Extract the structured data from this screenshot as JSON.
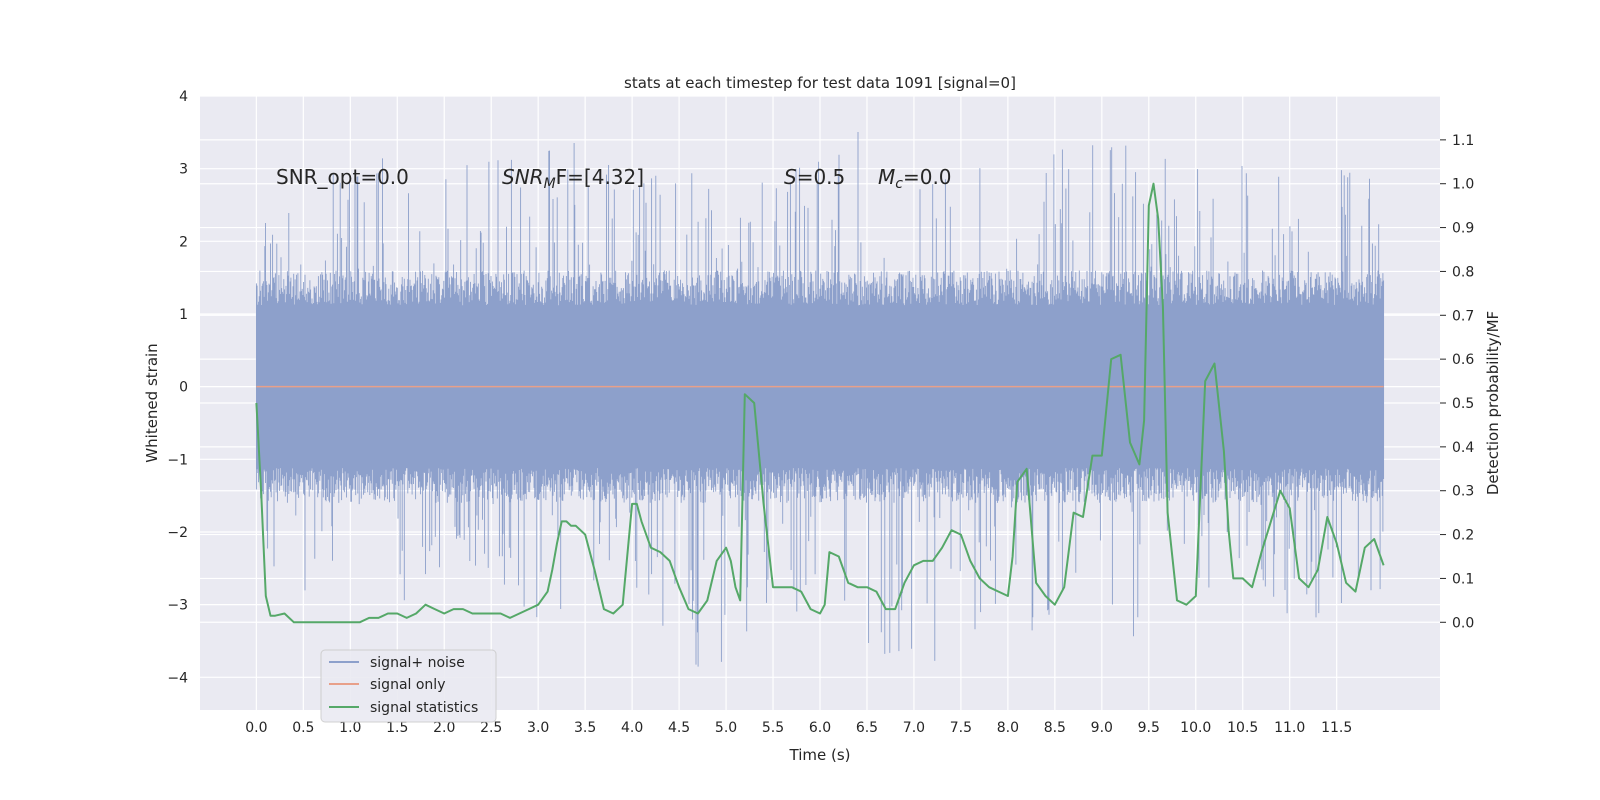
{
  "chart_data": {
    "type": "line",
    "title": "stats at each timestep for test data 1091 [signal=0]",
    "xlabel": "Time (s)",
    "ylabel": "Whitened strain",
    "y2label": "Detection probability/MF",
    "xlim": [
      -0.6,
      12.6
    ],
    "ylim": [
      -4.45,
      4.0
    ],
    "y2lim": [
      -0.2,
      1.2
    ],
    "x_ticks": [
      0.0,
      0.5,
      1.0,
      1.5,
      2.0,
      2.5,
      3.0,
      3.5,
      4.0,
      4.5,
      5.0,
      5.5,
      6.0,
      6.5,
      7.0,
      7.5,
      8.0,
      8.5,
      9.0,
      9.5,
      10.0,
      10.5,
      11.0,
      11.5
    ],
    "x_tick_labels": [
      "0.0",
      "0.5",
      "1.0",
      "1.5",
      "2.0",
      "2.5",
      "3.0",
      "3.5",
      "4.0",
      "4.5",
      "5.0",
      "5.5",
      "6.0",
      "6.5",
      "7.0",
      "7.5",
      "8.0",
      "8.5",
      "9.0",
      "9.5",
      "10.0",
      "10.5",
      "11.0",
      "11.5"
    ],
    "y_ticks": [
      -4,
      -3,
      -2,
      -1,
      0,
      1,
      2,
      3,
      4
    ],
    "y_tick_labels": [
      "−4",
      "−3",
      "−2",
      "−1",
      "0",
      "1",
      "2",
      "3",
      "4"
    ],
    "y2_ticks": [
      0.0,
      0.1,
      0.2,
      0.3,
      0.4,
      0.5,
      0.6,
      0.7,
      0.8,
      0.9,
      1.0,
      1.1
    ],
    "y2_tick_labels": [
      "0.0",
      "0.1",
      "0.2",
      "0.3",
      "0.4",
      "0.5",
      "0.6",
      "0.7",
      "0.8",
      "0.9",
      "1.0",
      "1.1"
    ],
    "grid": true,
    "legend_position": "lower-left",
    "annotations": {
      "snr_opt": "SNR_opt=0.0",
      "snr_mf_main": "SNR",
      "snr_mf_sub": "M",
      "snr_mf_rest": "F=[4.32]",
      "s_var": "S",
      "s_rest": "=0.5",
      "mc_var": "M",
      "mc_sub": "c",
      "mc_rest": "=0.0"
    },
    "series": [
      {
        "name": "signal+ noise",
        "axis": "left",
        "color": "#8da0cb",
        "style": "dense noise band",
        "x_range": [
          0.0,
          12.0
        ],
        "core_range": [
          -1.6,
          1.6
        ],
        "spike_max": [
          [
            0.0,
            2.4
          ],
          [
            0.5,
            3.3
          ],
          [
            1.0,
            2.8
          ],
          [
            1.5,
            3.4
          ],
          [
            2.0,
            3.0
          ],
          [
            2.5,
            3.1
          ],
          [
            3.0,
            3.2
          ],
          [
            3.5,
            3.4
          ],
          [
            4.0,
            2.7
          ],
          [
            4.5,
            3.1
          ],
          [
            5.0,
            2.5
          ],
          [
            5.5,
            2.9
          ],
          [
            6.0,
            3.1
          ],
          [
            6.5,
            3.6
          ],
          [
            7.0,
            3.0
          ],
          [
            7.5,
            3.5
          ],
          [
            8.0,
            3.0
          ],
          [
            8.5,
            3.2
          ],
          [
            9.0,
            3.6
          ],
          [
            9.5,
            3.1
          ],
          [
            10.0,
            3.2
          ],
          [
            10.5,
            3.1
          ],
          [
            11.0,
            2.9
          ],
          [
            11.5,
            3.0
          ],
          [
            12.0,
            2.8
          ]
        ],
        "spike_min": [
          [
            0.0,
            -2.7
          ],
          [
            0.5,
            -2.8
          ],
          [
            1.0,
            -2.9
          ],
          [
            1.5,
            -3.0
          ],
          [
            2.0,
            -2.6
          ],
          [
            2.5,
            -2.5
          ],
          [
            3.0,
            -3.3
          ],
          [
            3.5,
            -2.8
          ],
          [
            4.0,
            -2.7
          ],
          [
            4.5,
            -3.6
          ],
          [
            4.9,
            -4.1
          ],
          [
            5.5,
            -3.0
          ],
          [
            6.0,
            -3.2
          ],
          [
            6.6,
            -3.7
          ],
          [
            7.0,
            -3.6
          ],
          [
            7.2,
            -3.95
          ],
          [
            7.5,
            -3.4
          ],
          [
            8.0,
            -3.2
          ],
          [
            8.5,
            -3.5
          ],
          [
            9.0,
            -3.3
          ],
          [
            9.5,
            -3.5
          ],
          [
            10.0,
            -3.2
          ],
          [
            10.5,
            -3.2
          ],
          [
            11.0,
            -3.4
          ],
          [
            11.5,
            -3.0
          ],
          [
            12.0,
            -2.8
          ]
        ]
      },
      {
        "name": "signal only",
        "axis": "left",
        "color": "#e8a08a",
        "x": [
          0.0,
          12.0
        ],
        "y": [
          0.0,
          0.0
        ]
      },
      {
        "name": "signal statistics",
        "axis": "right",
        "color": "#55a868",
        "x": [
          0.0,
          0.05,
          0.1,
          0.15,
          0.2,
          0.3,
          0.4,
          0.5,
          0.6,
          0.8,
          1.0,
          1.1,
          1.2,
          1.3,
          1.4,
          1.5,
          1.6,
          1.7,
          1.8,
          1.9,
          2.0,
          2.1,
          2.2,
          2.3,
          2.4,
          2.5,
          2.6,
          2.7,
          2.8,
          2.9,
          3.0,
          3.1,
          3.15,
          3.2,
          3.25,
          3.3,
          3.35,
          3.4,
          3.45,
          3.5,
          3.6,
          3.7,
          3.8,
          3.9,
          4.0,
          4.05,
          4.1,
          4.2,
          4.3,
          4.4,
          4.5,
          4.6,
          4.7,
          4.8,
          4.9,
          5.0,
          5.05,
          5.1,
          5.15,
          5.2,
          5.3,
          5.4,
          5.5,
          5.6,
          5.7,
          5.8,
          5.9,
          6.0,
          6.05,
          6.1,
          6.2,
          6.3,
          6.4,
          6.5,
          6.6,
          6.7,
          6.8,
          6.9,
          7.0,
          7.1,
          7.2,
          7.3,
          7.4,
          7.5,
          7.6,
          7.7,
          7.8,
          7.9,
          8.0,
          8.05,
          8.1,
          8.2,
          8.3,
          8.4,
          8.5,
          8.6,
          8.7,
          8.8,
          8.9,
          9.0,
          9.1,
          9.2,
          9.3,
          9.4,
          9.45,
          9.5,
          9.55,
          9.6,
          9.65,
          9.7,
          9.8,
          9.9,
          10.0,
          10.1,
          10.2,
          10.3,
          10.35,
          10.4,
          10.5,
          10.6,
          10.7,
          10.8,
          10.9,
          11.0,
          11.1,
          11.2,
          11.3,
          11.4,
          11.5,
          11.6,
          11.7,
          11.8,
          11.9,
          12.0
        ],
        "y": [
          0.5,
          0.3,
          0.06,
          0.015,
          0.015,
          0.02,
          0.0,
          0.0,
          0.0,
          0.0,
          0.0,
          0.0,
          0.01,
          0.01,
          0.02,
          0.02,
          0.01,
          0.02,
          0.04,
          0.03,
          0.02,
          0.03,
          0.03,
          0.02,
          0.02,
          0.02,
          0.02,
          0.01,
          0.02,
          0.03,
          0.04,
          0.07,
          0.12,
          0.18,
          0.23,
          0.23,
          0.22,
          0.22,
          0.21,
          0.2,
          0.12,
          0.03,
          0.02,
          0.04,
          0.27,
          0.27,
          0.23,
          0.17,
          0.16,
          0.14,
          0.08,
          0.03,
          0.02,
          0.05,
          0.14,
          0.17,
          0.14,
          0.08,
          0.05,
          0.52,
          0.5,
          0.27,
          0.08,
          0.08,
          0.08,
          0.07,
          0.03,
          0.02,
          0.04,
          0.16,
          0.15,
          0.09,
          0.08,
          0.08,
          0.07,
          0.03,
          0.03,
          0.09,
          0.13,
          0.14,
          0.14,
          0.17,
          0.21,
          0.2,
          0.14,
          0.1,
          0.08,
          0.07,
          0.06,
          0.15,
          0.32,
          0.35,
          0.09,
          0.06,
          0.04,
          0.08,
          0.25,
          0.24,
          0.38,
          0.38,
          0.6,
          0.61,
          0.41,
          0.36,
          0.46,
          0.95,
          1.0,
          0.92,
          0.72,
          0.25,
          0.05,
          0.04,
          0.06,
          0.55,
          0.59,
          0.39,
          0.21,
          0.1,
          0.1,
          0.08,
          0.16,
          0.23,
          0.3,
          0.26,
          0.1,
          0.08,
          0.12,
          0.24,
          0.18,
          0.09,
          0.07,
          0.17,
          0.19,
          0.13
        ]
      }
    ]
  }
}
